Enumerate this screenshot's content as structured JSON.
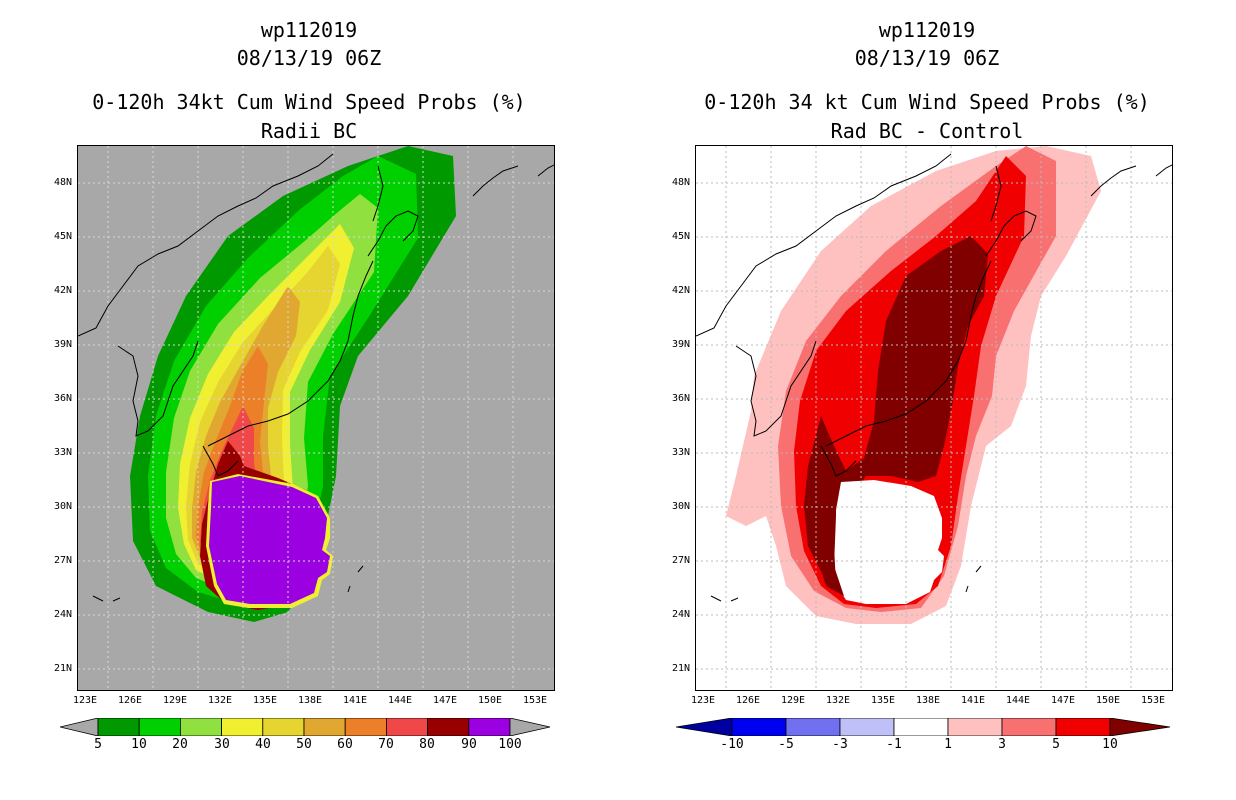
{
  "left": {
    "storm_id": "wp112019",
    "datetime": "08/13/19 06Z",
    "title": "0-120h 34kt Cum Wind Speed Probs (%)",
    "subtitle": "Radii BC",
    "background_color": "#a8a8a8",
    "colorbar": {
      "colors": [
        "#009a00",
        "#00d000",
        "#90e040",
        "#f0f030",
        "#e6d430",
        "#e0a830",
        "#ec8028",
        "#f04848",
        "#980000",
        "#9a00e0"
      ],
      "labels": [
        "5",
        "10",
        "20",
        "30",
        "40",
        "50",
        "60",
        "70",
        "80",
        "90",
        "100"
      ]
    }
  },
  "right": {
    "storm_id": "wp112019",
    "datetime": "08/13/19 06Z",
    "title": "0-120h 34 kt Cum Wind Speed Probs (%)",
    "subtitle": "Rad BC - Control",
    "background_color": "#ffffff",
    "colorbar": {
      "colors": [
        "#0000a0",
        "#0000f0",
        "#7070f0",
        "#c0c0f8",
        "#ffffff",
        "#ffc0c0",
        "#f87070",
        "#f00000",
        "#800000"
      ],
      "labels": [
        "-10",
        "-5",
        "-3",
        "-1",
        "1",
        "3",
        "5",
        "10"
      ]
    }
  },
  "axes": {
    "lat_labels": [
      "48N",
      "45N",
      "42N",
      "39N",
      "36N",
      "33N",
      "30N",
      "27N",
      "24N",
      "21N"
    ],
    "lon_labels": [
      "123E",
      "126E",
      "129E",
      "132E",
      "135E",
      "138E",
      "141E",
      "144E",
      "147E",
      "150E",
      "153E"
    ]
  }
}
